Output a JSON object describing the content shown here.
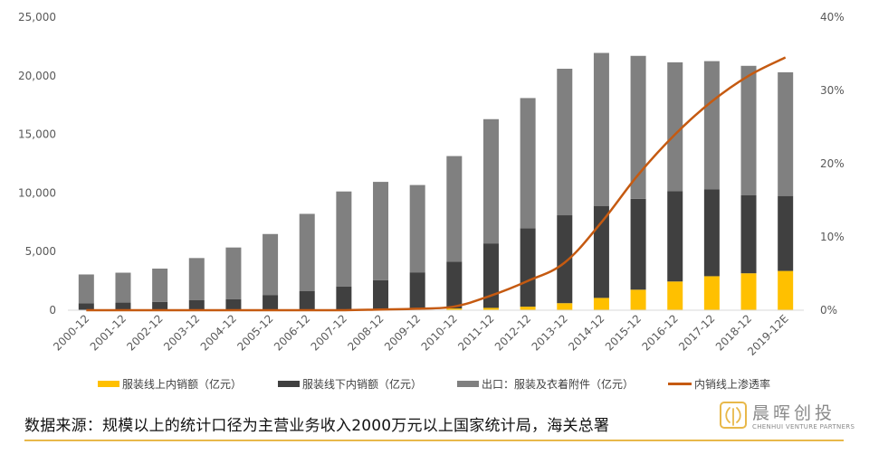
{
  "chart_data": {
    "type": "bar",
    "stacked": true,
    "categories": [
      "2000-12",
      "2001-12",
      "2002-12",
      "2003-12",
      "2004-12",
      "2005-12",
      "2006-12",
      "2007-12",
      "2008-12",
      "2009-12",
      "2010-12",
      "2011-12",
      "2012-12",
      "2013-12",
      "2014-12",
      "2015-12",
      "2016-12",
      "2017-12",
      "2018-12",
      "2019-12E"
    ],
    "series": [
      {
        "name": "服装线上内销额（亿元）",
        "color": "#FFC000",
        "axis": "left",
        "values": [
          0,
          0,
          0,
          0,
          0,
          0,
          20,
          30,
          50,
          80,
          150,
          200,
          300,
          600,
          1050,
          1750,
          2450,
          2900,
          3150,
          3350
        ]
      },
      {
        "name": "服装线下内销额（亿元）",
        "color": "#404040",
        "axis": "left",
        "values": [
          600,
          650,
          700,
          850,
          950,
          1300,
          1600,
          2000,
          2500,
          3150,
          4000,
          5500,
          6700,
          7500,
          7850,
          7750,
          7700,
          7400,
          6650,
          6400
        ]
      },
      {
        "name": "出口：服装及衣着附件（亿元）",
        "color": "#808080",
        "axis": "left",
        "values": [
          2450,
          2550,
          2850,
          3600,
          4400,
          5200,
          6600,
          8100,
          8400,
          7450,
          9000,
          10600,
          11100,
          12500,
          13050,
          12200,
          11000,
          10950,
          11050,
          10550
        ]
      },
      {
        "name": "内销线上渗透率",
        "color": "#C55A11",
        "axis": "right",
        "type": "line",
        "values": [
          0,
          0,
          0,
          0,
          0,
          0,
          0,
          0,
          0.1,
          0.2,
          0.5,
          2,
          4,
          6.5,
          12,
          18.5,
          24,
          28.5,
          32,
          34.5
        ]
      }
    ],
    "yticks": [
      "0",
      "5,000",
      "10,000",
      "15,000",
      "20,000",
      "25,000"
    ],
    "ylim": [
      0,
      25000
    ],
    "y2ticks": [
      "0%",
      "10%",
      "20%",
      "30%",
      "40%"
    ],
    "y2lim": [
      0,
      40
    ],
    "grid": false,
    "legend_position": "bottom"
  },
  "footer": {
    "source": "数据来源：规模以上的统计口径为主营业务收入2000万元以上国家统计局，海关总署"
  },
  "logo": {
    "name": "晨晖创投",
    "sub": "CHENHUI VENTURE PARTNERS",
    "color": "#E8B84A"
  }
}
